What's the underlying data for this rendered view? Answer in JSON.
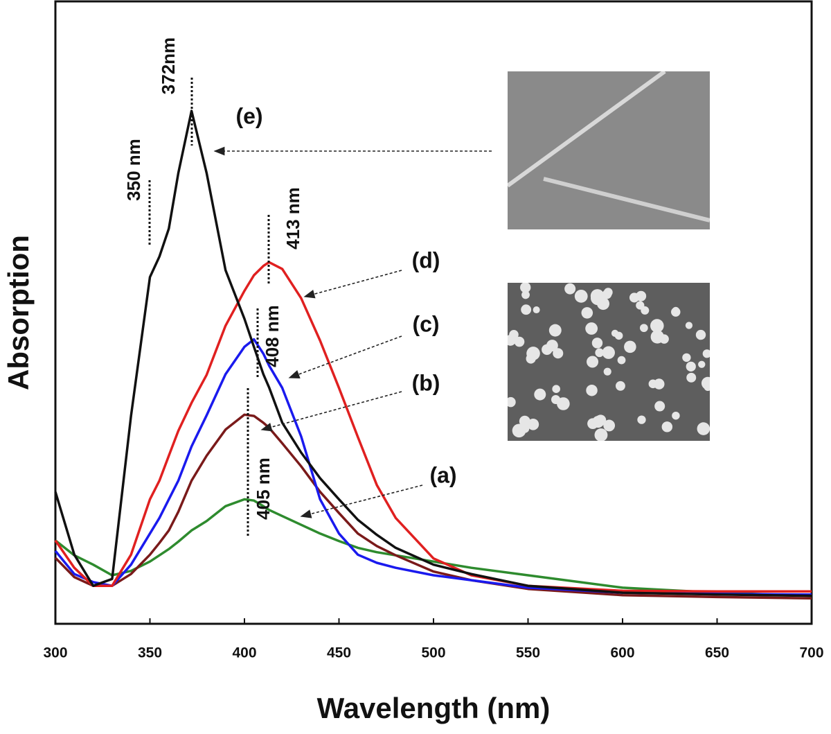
{
  "chart_data": {
    "type": "line",
    "x_label": "Wavelength (nm)",
    "y_label": "Absorption",
    "xlim": [
      300,
      700
    ],
    "xticks": [
      300,
      350,
      400,
      450,
      500,
      550,
      600,
      650,
      700
    ],
    "ylim": [
      0,
      100
    ],
    "x": [
      300,
      310,
      320,
      330,
      340,
      350,
      355,
      360,
      365,
      372,
      380,
      390,
      400,
      405,
      410,
      413,
      420,
      430,
      440,
      450,
      460,
      470,
      480,
      500,
      520,
      550,
      600,
      650,
      700
    ],
    "series": [
      {
        "name": "(a)",
        "color": "#2e8b2e",
        "values": [
          13.4,
          11,
          9.5,
          7.8,
          8.5,
          10,
          11,
          12,
          13.2,
          15,
          16.5,
          18.9,
          20,
          19.8,
          18.9,
          18.3,
          17.3,
          15.9,
          14.5,
          13.3,
          12.2,
          11.5,
          11,
          10,
          9,
          7.8,
          5.8,
          5,
          4.5
        ]
      },
      {
        "name": "(b)",
        "color": "#7a1a1a",
        "values": [
          10.6,
          7.5,
          6.1,
          6.1,
          8,
          11.1,
          13,
          15,
          18,
          23,
          27,
          31.2,
          33.6,
          33.4,
          32.3,
          31.5,
          29,
          25.3,
          21.2,
          17.8,
          14.5,
          12.5,
          11,
          8.4,
          7,
          5.6,
          4.6,
          4.3,
          4.1
        ]
      },
      {
        "name": "(c)",
        "color": "#1a1aee",
        "values": [
          11.7,
          8,
          6.7,
          6.1,
          9.5,
          14.5,
          17,
          20,
          23,
          28.5,
          33.5,
          40.1,
          44.5,
          45.7,
          43.4,
          41.5,
          37.9,
          30.1,
          20,
          14.5,
          11.1,
          9.8,
          9,
          7.8,
          7,
          5.8,
          5,
          4.8,
          4.7
        ]
      },
      {
        "name": "(d)",
        "color": "#e02020",
        "values": [
          13.4,
          9,
          6.1,
          6.1,
          11.1,
          20,
          23,
          27,
          31,
          35.5,
          40,
          47.9,
          53.5,
          56,
          57.5,
          58.1,
          57,
          52.3,
          45.5,
          37.9,
          30,
          22.3,
          17,
          10.5,
          7.8,
          6.1,
          5.3,
          5.2,
          5.2
        ]
      },
      {
        "name": "(e)",
        "color": "#111111",
        "values": [
          21.2,
          11.1,
          6.1,
          7.2,
          33.4,
          55.7,
          59,
          63.5,
          72.4,
          82.4,
          72.4,
          56.8,
          49,
          44.5,
          40.1,
          38,
          32.3,
          27.5,
          23.4,
          20,
          16.7,
          14.3,
          12.2,
          9.5,
          8,
          6.1,
          5,
          4.7,
          4.5
        ]
      }
    ],
    "annotations": [
      "372nm",
      "350 nm",
      "413 nm",
      "408 nm",
      "405 nm"
    ]
  }
}
